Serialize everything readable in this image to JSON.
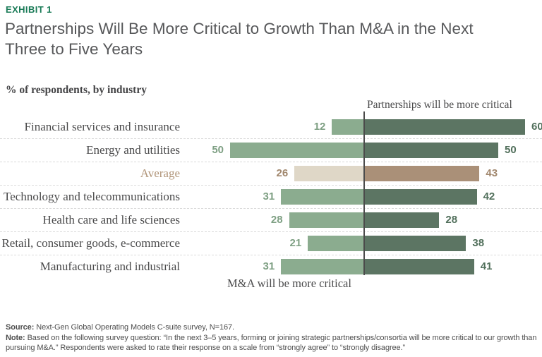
{
  "exhibit_label": "EXHIBIT 1",
  "title_lines": [
    "Partnerships Will Be More Critical to Growth Than M&A in the Next",
    "Three to Five Years"
  ],
  "subtitle": "% of respondents, by industry",
  "footer": {
    "source_label": "Source:",
    "source_text": " Next-Gen Global Operating Models C-suite survey, N=167.",
    "note_label": "Note:",
    "note_text": " Based on the following survey question: “In the next 3–5 years, forming or joining strategic partnerships/consortia will be more critical to our growth than pursuing M&A.” Respondents were asked to rate their response on a scale from “strongly agree” to “strongly disagree.”"
  },
  "colors": {
    "accent_green": "#1A7B57",
    "title_gray": "#57585A",
    "left_bar": "#8BAC8F",
    "right_bar": "#5C7563",
    "highlight_left_bar": "#DFD7C7",
    "highlight_right_bar": "#AA9078",
    "left_value_text": "#7FA084",
    "right_value_text": "#52705C",
    "highlight_text": "#A1876D",
    "highlight_label": "#B09478",
    "axis_line": "#4B4B4B",
    "separator": "#DADADA"
  },
  "chart_data": {
    "type": "bar",
    "orientation": "diverging-horizontal",
    "unit": "% of respondents",
    "title": "Partnerships Will Be More Critical to Growth Than M&A in the Next Three to Five Years",
    "categories": [
      "Financial services and insurance",
      "Energy and utilities",
      "Average",
      "Technology and telecommunications",
      "Health care and life sciences",
      "Retail, consumer goods, e-commerce",
      "Manufacturing and industrial"
    ],
    "series": [
      {
        "name": "M&A will be more critical",
        "side": "left",
        "values": [
          12,
          50,
          26,
          31,
          28,
          21,
          31
        ]
      },
      {
        "name": "Partnerships will be more critical",
        "side": "right",
        "values": [
          60,
          50,
          43,
          42,
          28,
          38,
          41
        ]
      }
    ],
    "left_label": "M&A will be more critical",
    "right_label": "Partnerships will be more critical",
    "highlight_index": 2,
    "value_range": [
      0,
      60
    ],
    "grid": "dashed-row-separators",
    "legend_position": "axis-labels"
  }
}
